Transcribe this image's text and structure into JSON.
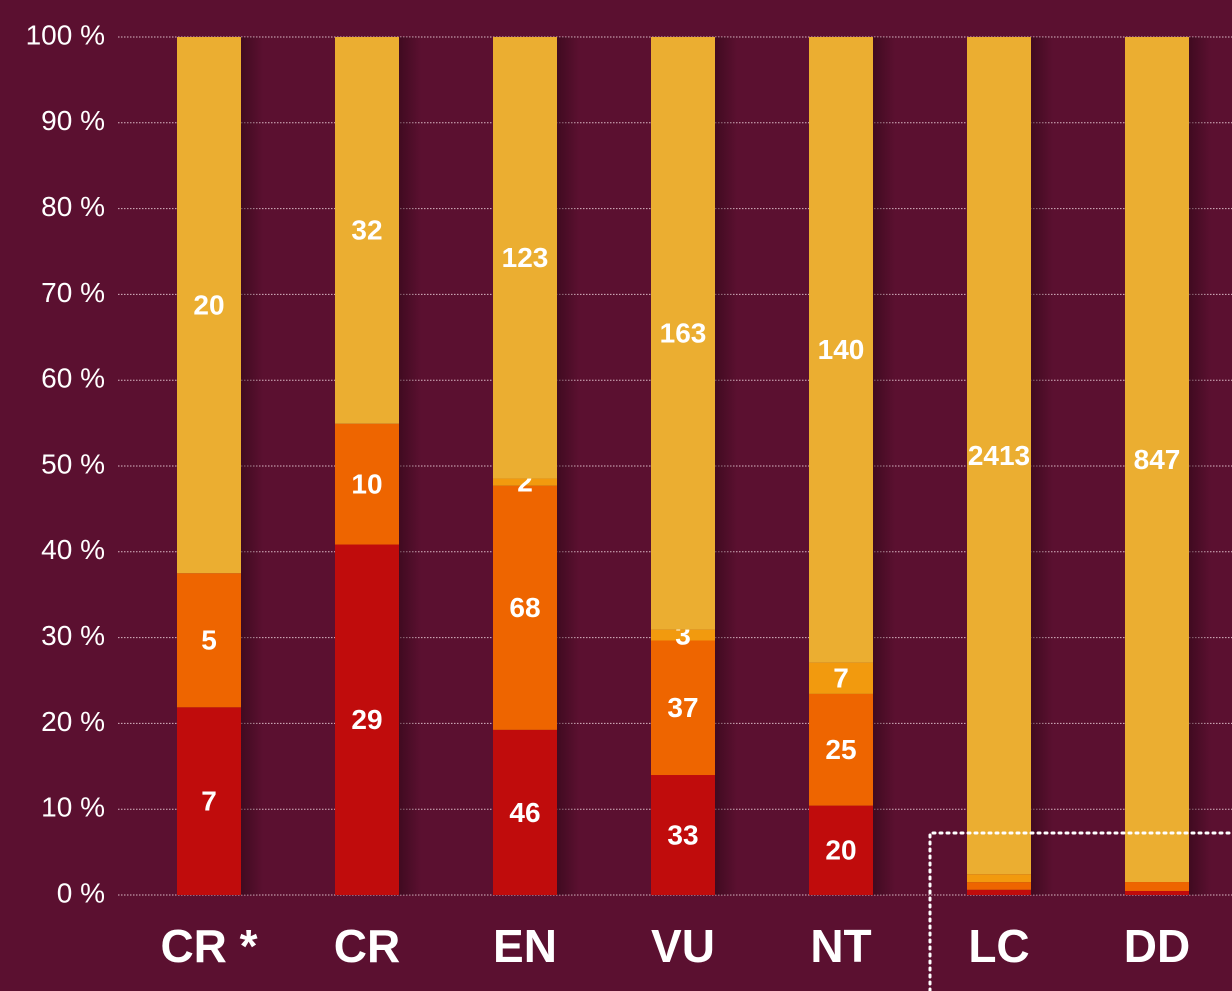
{
  "chart_data": {
    "type": "stacked_percent_bar",
    "categories": [
      "CR *",
      "CR",
      "EN",
      "VU",
      "NT",
      "LC",
      "DD"
    ],
    "series": [
      {
        "color": "#c00c0c",
        "values": [
          7,
          29,
          46,
          33,
          20,
          15,
          4
        ],
        "value_labels": [
          "7",
          "29",
          "46",
          "33",
          "20",
          null,
          null
        ]
      },
      {
        "color": "#ee6500",
        "values": [
          5,
          10,
          68,
          37,
          25,
          22,
          9
        ],
        "value_labels": [
          "5",
          "10",
          "68",
          "37",
          "25",
          null,
          null
        ]
      },
      {
        "color": "#f29a0e",
        "values": [
          0,
          0,
          2,
          3,
          7,
          23,
          0
        ],
        "value_labels": [
          null,
          null,
          "2",
          "3",
          "7",
          null,
          null
        ]
      },
      {
        "color": "#ebae31",
        "values": [
          20,
          32,
          123,
          163,
          140,
          2413,
          847
        ],
        "value_labels": [
          "20",
          "32",
          "123",
          "163",
          "140",
          "2413",
          "847"
        ]
      }
    ],
    "ylim": [
      0,
      100
    ],
    "yticks": [
      {
        "value": 0,
        "label": "0 %"
      },
      {
        "value": 10,
        "label": "10 %"
      },
      {
        "value": 20,
        "label": "20 %"
      },
      {
        "value": 30,
        "label": "30 %"
      },
      {
        "value": 40,
        "label": "40 %"
      },
      {
        "value": 50,
        "label": "50 %"
      },
      {
        "value": 60,
        "label": "60 %"
      },
      {
        "value": 70,
        "label": "70 %"
      },
      {
        "value": 80,
        "label": "80 %"
      },
      {
        "value": 90,
        "label": "90 %"
      },
      {
        "value": 100,
        "label": "100 %"
      }
    ],
    "grid": true
  }
}
